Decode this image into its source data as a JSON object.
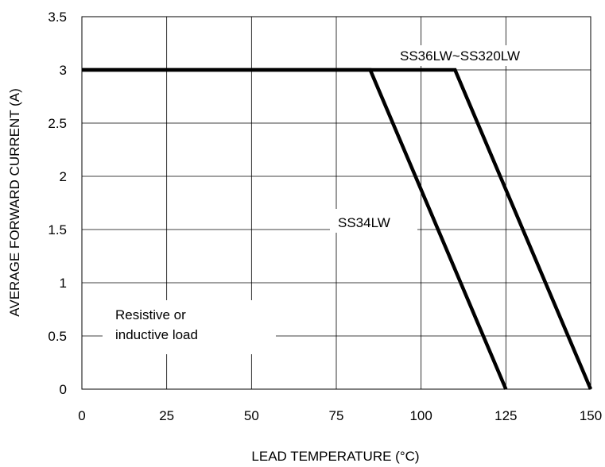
{
  "chart_data": {
    "type": "line",
    "xlabel": "LEAD TEMPERATURE (°C)",
    "ylabel": "AVERAGE FORWARD CURRENT (A)",
    "xlim": [
      0,
      150
    ],
    "ylim": [
      0,
      3.5
    ],
    "x_ticks": [
      0,
      25,
      50,
      75,
      100,
      125,
      150
    ],
    "y_ticks": [
      0,
      0.5,
      1,
      1.5,
      2,
      2.5,
      3,
      3.5
    ],
    "x_tick_labels": [
      "0",
      "25",
      "50",
      "75",
      "100",
      "125",
      "150"
    ],
    "y_tick_labels": [
      "0",
      "0.5",
      "1",
      "1.5",
      "2",
      "2.5",
      "3",
      "3.5"
    ],
    "grid": true,
    "line_color": "#000000",
    "series": [
      {
        "name": "SS34LW",
        "x": [
          0,
          85,
          125
        ],
        "y": [
          3,
          3,
          0
        ]
      },
      {
        "name": "SS36LW~SS320LW",
        "x": [
          0,
          110,
          150
        ],
        "y": [
          3,
          3,
          0
        ]
      }
    ],
    "annotations": [
      {
        "line1": "Resistive or",
        "line2": "inductive load"
      }
    ]
  }
}
